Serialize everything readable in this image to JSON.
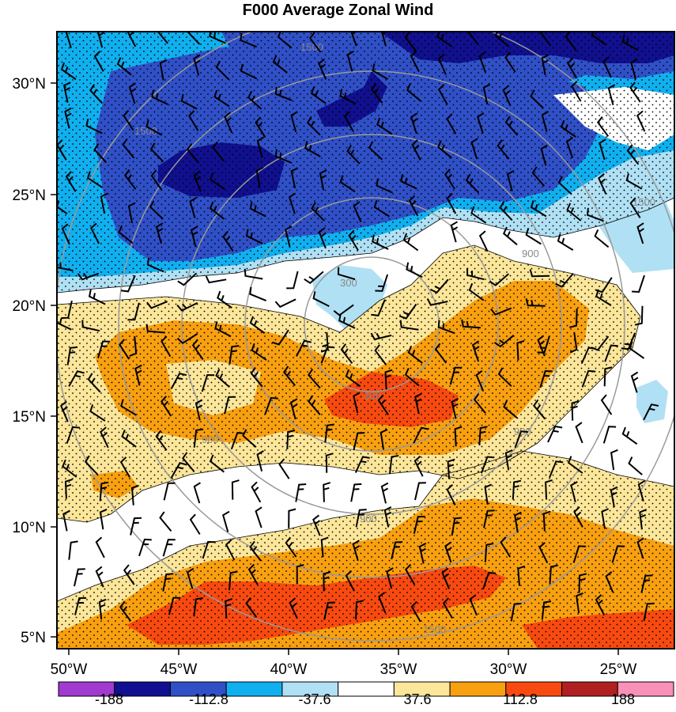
{
  "title": "F000 Average Zonal Wind",
  "axes": {
    "lat_ticks": [
      "30°N",
      "25°N",
      "20°N",
      "15°N",
      "10°N",
      "5°N"
    ],
    "lon_ticks": [
      "50°W",
      "45°W",
      "40°W",
      "35°W",
      "30°W",
      "25°W"
    ]
  },
  "range_rings": {
    "labels": [
      "300",
      "900",
      "1500",
      "900",
      "1500",
      "900",
      "1500",
      "300",
      "900",
      "1500"
    ]
  },
  "colorbar": {
    "colors": [
      "#a03ad0",
      "#101090",
      "#3050c8",
      "#10b0f0",
      "#b0e0f4",
      "#ffffff",
      "#fbe69a",
      "#f8a010",
      "#f84a10",
      "#b02020",
      "#f890b8"
    ],
    "labels": [
      "-188",
      "-112.8",
      "-37.6",
      "37.6",
      "112.8",
      "188"
    ]
  },
  "palette": {
    "darkest_blue": "#101090",
    "mid_blue": "#3050c8",
    "light_blue": "#10b0f0",
    "pale_blue": "#b0e0f4",
    "pale_yellow": "#fbe69a",
    "orange": "#f8a010",
    "red_orange": "#f84a10"
  }
}
